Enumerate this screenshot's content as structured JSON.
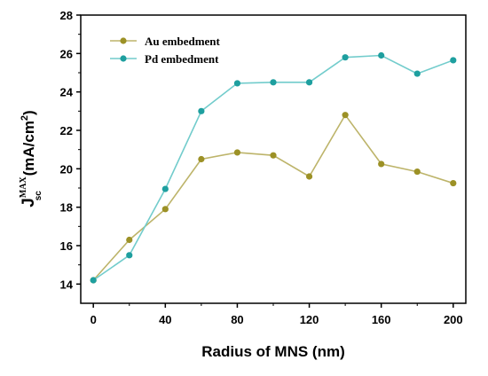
{
  "chart_data": {
    "type": "line",
    "title": "",
    "xlabel": "Radius of MNS (nm)",
    "ylabel": {
      "main": "J",
      "superscript": "MAX",
      "subscript": "sc",
      "units_prefix": " (mA/cm",
      "units_superscript": "2",
      "units_suffix": ")"
    },
    "xlim": [
      -7,
      207
    ],
    "ylim": [
      13,
      28
    ],
    "xticks": [
      0,
      40,
      80,
      120,
      160,
      200
    ],
    "yticks": [
      14,
      16,
      18,
      20,
      22,
      24,
      26,
      28
    ],
    "grid": false,
    "legend_position": "top-left",
    "x": [
      0,
      20,
      40,
      60,
      80,
      100,
      120,
      140,
      160,
      180,
      200
    ],
    "series": [
      {
        "name": "Au embedment",
        "color": "#9c9126",
        "line_color": "#bdb46a",
        "values": [
          14.2,
          16.3,
          17.9,
          20.5,
          20.85,
          20.7,
          19.6,
          22.8,
          20.25,
          19.85,
          19.25
        ]
      },
      {
        "name": "Pd embedment",
        "color": "#1e9f9f",
        "line_color": "#72cccc",
        "values": [
          14.2,
          15.5,
          18.95,
          23.0,
          24.45,
          24.5,
          24.5,
          25.8,
          25.9,
          24.95,
          25.65
        ]
      }
    ]
  }
}
